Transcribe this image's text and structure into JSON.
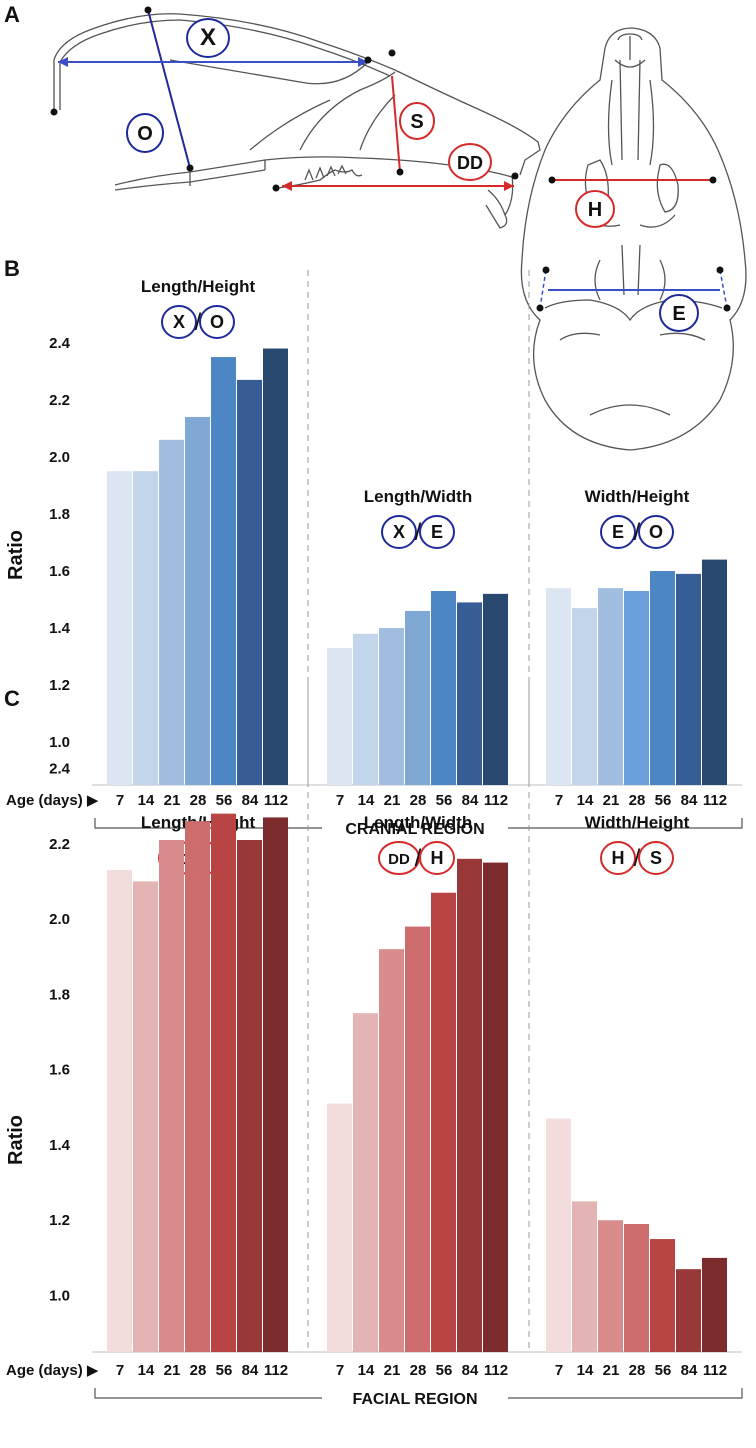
{
  "panels": {
    "A": "A",
    "B": "B",
    "C": "C"
  },
  "skull_labels": {
    "X": "X",
    "O": "O",
    "S": "S",
    "DD": "DD",
    "H": "H",
    "E": "E"
  },
  "colors": {
    "blue_line": "#3a4fc7",
    "dark_blue_line": "#1f2a9a",
    "red_line": "#d42a2a",
    "blue_circle": "#1f2a9a",
    "red_circle": "#d42a2a",
    "blue_shades": [
      "#dde7f3",
      "#c3d5ea",
      "#a1bde0",
      "#80a8d4",
      "#4d86c4",
      "#375d96",
      "#284870"
    ],
    "blue_shades_group3": [
      "#dde7f3",
      "#c3d5ea",
      "#a1bde0",
      "#6b9fdc",
      "#4d86c4",
      "#375d96",
      "#284870"
    ],
    "red_shades": [
      "#f2dcdc",
      "#e4b3b3",
      "#d98c8c",
      "#cc6c6c",
      "#b84444",
      "#993838",
      "#7b2b2b"
    ]
  },
  "chart_data": [
    {
      "panel": "B",
      "type": "bar",
      "ylabel": "Ratio",
      "ylim": [
        0.85,
        2.55
      ],
      "yticks": [
        "1.0",
        "1.2",
        "1.4",
        "1.6",
        "1.8",
        "2.0",
        "2.2",
        "2.4"
      ],
      "xlabel": "Age (days) ▶",
      "region_label": "CRANIAL REGION",
      "categories": [
        "7",
        "14",
        "21",
        "28",
        "56",
        "84",
        "112"
      ],
      "groups": [
        {
          "title": "Length/Height",
          "num": "X",
          "den": "O",
          "color": "blue",
          "values": [
            1.95,
            1.95,
            2.06,
            2.14,
            2.35,
            2.27,
            2.38
          ]
        },
        {
          "title": "Length/Width",
          "num": "X",
          "den": "E",
          "color": "blue",
          "values": [
            1.33,
            1.38,
            1.4,
            1.46,
            1.53,
            1.49,
            1.52
          ]
        },
        {
          "title": "Width/Height",
          "num": "E",
          "den": "O",
          "color": "blue",
          "values": [
            1.54,
            1.47,
            1.54,
            1.53,
            1.6,
            1.59,
            1.64
          ]
        }
      ]
    },
    {
      "panel": "C",
      "type": "bar",
      "ylabel": "Ratio",
      "ylim": [
        0.85,
        2.55
      ],
      "yticks": [
        "1.0",
        "1.2",
        "1.4",
        "1.6",
        "1.8",
        "2.0",
        "2.2",
        "2.4"
      ],
      "xlabel": "Age (days) ▶",
      "region_label": "FACIAL REGION",
      "categories": [
        "7",
        "14",
        "21",
        "28",
        "56",
        "84",
        "112"
      ],
      "groups": [
        {
          "title": "Length/Height",
          "num": "DD",
          "den": "S",
          "color": "red",
          "values": [
            2.13,
            2.1,
            2.21,
            2.26,
            2.28,
            2.21,
            2.27
          ]
        },
        {
          "title": "Length/Width",
          "num": "DD",
          "den": "H",
          "color": "red",
          "values": [
            1.51,
            1.75,
            1.92,
            1.98,
            2.07,
            2.16,
            2.15
          ]
        },
        {
          "title": "Width/Height",
          "num": "H",
          "den": "S",
          "color": "red",
          "values": [
            1.47,
            1.25,
            1.2,
            1.19,
            1.15,
            1.07,
            1.1
          ]
        }
      ]
    }
  ]
}
